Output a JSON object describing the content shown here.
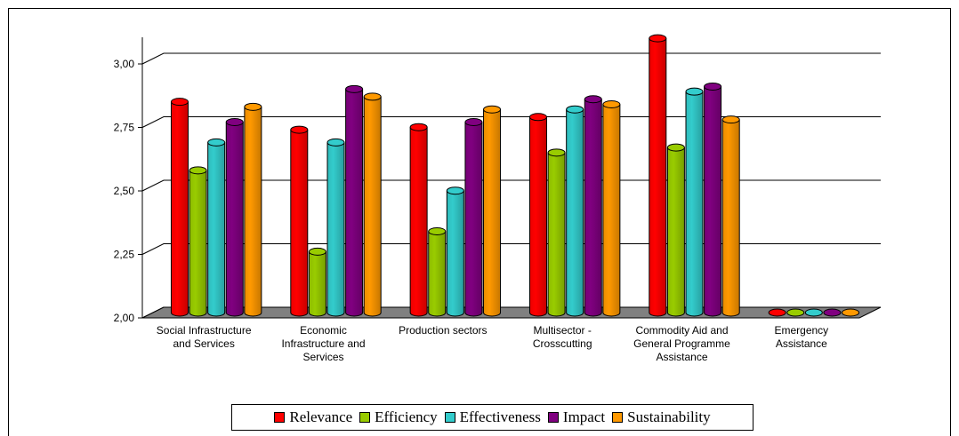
{
  "chart_data": {
    "type": "bar",
    "title": "",
    "xlabel": "",
    "ylabel": "",
    "ylim": [
      2.0,
      3.0
    ],
    "yticks": [
      "2,00",
      "2,25",
      "2,50",
      "2,75",
      "3,00"
    ],
    "ytick_values": [
      2.0,
      2.25,
      2.5,
      2.75,
      3.0
    ],
    "grid": true,
    "three_d": true,
    "legend_position": "bottom",
    "categories": [
      [
        "Social Infrastructure",
        "and Services"
      ],
      [
        "Economic",
        "Infrastructure and",
        "Services"
      ],
      [
        "Production sectors"
      ],
      [
        "Multisector -",
        "Crosscutting"
      ],
      [
        "Commodity Aid and",
        "General Programme",
        "Assistance"
      ],
      [
        "Emergency",
        "Assistance"
      ]
    ],
    "series": [
      {
        "name": "Relevance",
        "color": "#ff0000",
        "values": [
          2.83,
          2.72,
          2.73,
          2.77,
          3.08,
          2.0
        ]
      },
      {
        "name": "Efficiency",
        "color": "#99cc00",
        "values": [
          2.56,
          2.24,
          2.32,
          2.63,
          2.65,
          2.0
        ]
      },
      {
        "name": "Effectiveness",
        "color": "#33cccc",
        "values": [
          2.67,
          2.67,
          2.48,
          2.8,
          2.87,
          2.0
        ]
      },
      {
        "name": "Impact",
        "color": "#800080",
        "values": [
          2.75,
          2.88,
          2.75,
          2.84,
          2.89,
          2.0
        ]
      },
      {
        "name": "Sustainability",
        "color": "#ff9900",
        "values": [
          2.81,
          2.85,
          2.8,
          2.82,
          2.76,
          2.0
        ]
      }
    ]
  }
}
